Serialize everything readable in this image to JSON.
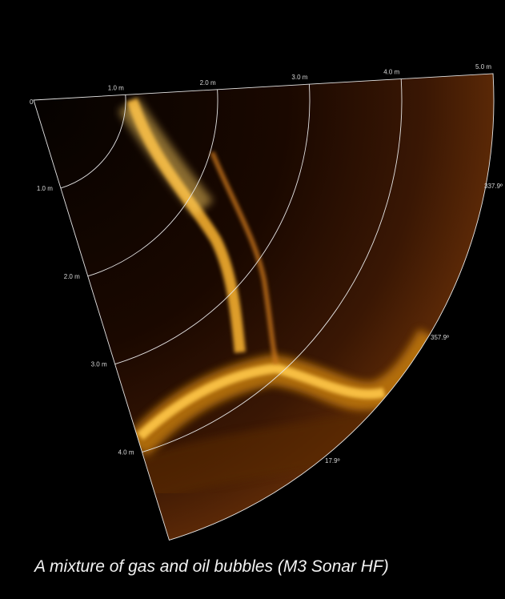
{
  "origin_label": "0",
  "range_top_labels": [
    "1.0 m",
    "2.0 m",
    "3.0 m",
    "4.0 m",
    "5.0 m"
  ],
  "range_left_labels": [
    "1.0 m",
    "2.0 m",
    "3.0 m",
    "4.0 m"
  ],
  "angle_labels": [
    "337.9º",
    "357.9º",
    "17.9º"
  ],
  "caption": "A mixture of gas and oil bubbles (M3 Sonar HF)"
}
